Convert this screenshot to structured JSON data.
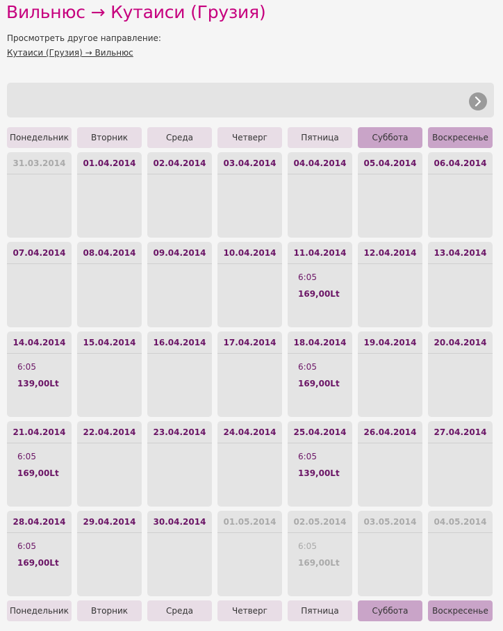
{
  "title": "Вильнюс → Кутаиси (Грузия)",
  "other_direction": {
    "label": "Просмотреть другое направление:",
    "link": "Кутаиси (Грузия) → Вильнюс"
  },
  "nav": {
    "next_icon": "chevron-right-icon"
  },
  "weekdays": [
    "Понедельник",
    "Вторник",
    "Среда",
    "Четверг",
    "Пятница",
    "Суббота",
    "Воскресенье"
  ],
  "weeks": [
    [
      {
        "date": "31.03.2014",
        "state": "past"
      },
      {
        "date": "01.04.2014"
      },
      {
        "date": "02.04.2014"
      },
      {
        "date": "03.04.2014"
      },
      {
        "date": "04.04.2014"
      },
      {
        "date": "05.04.2014"
      },
      {
        "date": "06.04.2014"
      }
    ],
    [
      {
        "date": "07.04.2014"
      },
      {
        "date": "08.04.2014"
      },
      {
        "date": "09.04.2014"
      },
      {
        "date": "10.04.2014"
      },
      {
        "date": "11.04.2014",
        "time": "6:05",
        "price": "169,00Lt"
      },
      {
        "date": "12.04.2014"
      },
      {
        "date": "13.04.2014"
      }
    ],
    [
      {
        "date": "14.04.2014",
        "time": "6:05",
        "price": "139,00Lt"
      },
      {
        "date": "15.04.2014"
      },
      {
        "date": "16.04.2014"
      },
      {
        "date": "17.04.2014"
      },
      {
        "date": "18.04.2014",
        "time": "6:05",
        "price": "169,00Lt"
      },
      {
        "date": "19.04.2014"
      },
      {
        "date": "20.04.2014"
      }
    ],
    [
      {
        "date": "21.04.2014",
        "time": "6:05",
        "price": "169,00Lt"
      },
      {
        "date": "22.04.2014"
      },
      {
        "date": "23.04.2014"
      },
      {
        "date": "24.04.2014"
      },
      {
        "date": "25.04.2014",
        "time": "6:05",
        "price": "139,00Lt"
      },
      {
        "date": "26.04.2014"
      },
      {
        "date": "27.04.2014"
      }
    ],
    [
      {
        "date": "28.04.2014",
        "time": "6:05",
        "price": "169,00Lt"
      },
      {
        "date": "29.04.2014"
      },
      {
        "date": "30.04.2014"
      },
      {
        "date": "01.05.2014",
        "state": "out"
      },
      {
        "date": "02.05.2014",
        "state": "out",
        "time": "6:05",
        "price": "169,00Lt"
      },
      {
        "date": "03.05.2014",
        "state": "out"
      },
      {
        "date": "04.05.2014",
        "state": "out"
      }
    ]
  ],
  "colors": {
    "title": "#c6007e",
    "date_active": "#6b1566",
    "date_inactive": "#aaaaaa",
    "weekday_header": "#e8dde6",
    "weekend_header": "#c9a4c8",
    "cell_bg": "#e4e4e4"
  }
}
